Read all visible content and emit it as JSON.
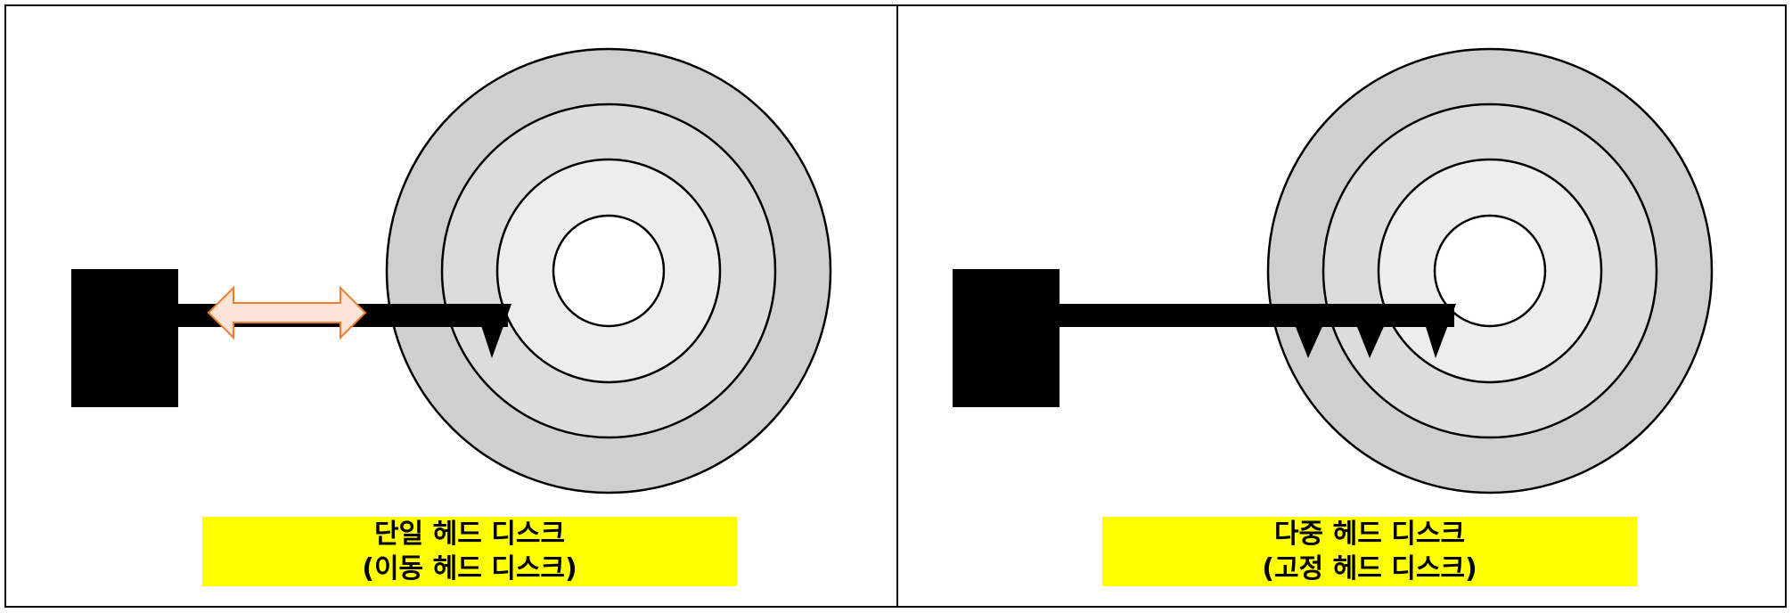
{
  "panels": [
    {
      "caption_line1": "단일 헤드 디스크",
      "caption_line2": "(이동 헤드 디스크)"
    },
    {
      "caption_line1": "다중 헤드 디스크",
      "caption_line2": "(고정 헤드 디스크)"
    }
  ],
  "colors": {
    "outer_ring": "#d0cfd0",
    "middle_ring": "#dcdcdc",
    "inner_ring": "#ededed",
    "hub": "#ffffff",
    "arm": "#000000",
    "arrow_fill": "#fbe3d6",
    "arrow_stroke": "#ed7d31",
    "caption_highlight": "#ffff00"
  }
}
